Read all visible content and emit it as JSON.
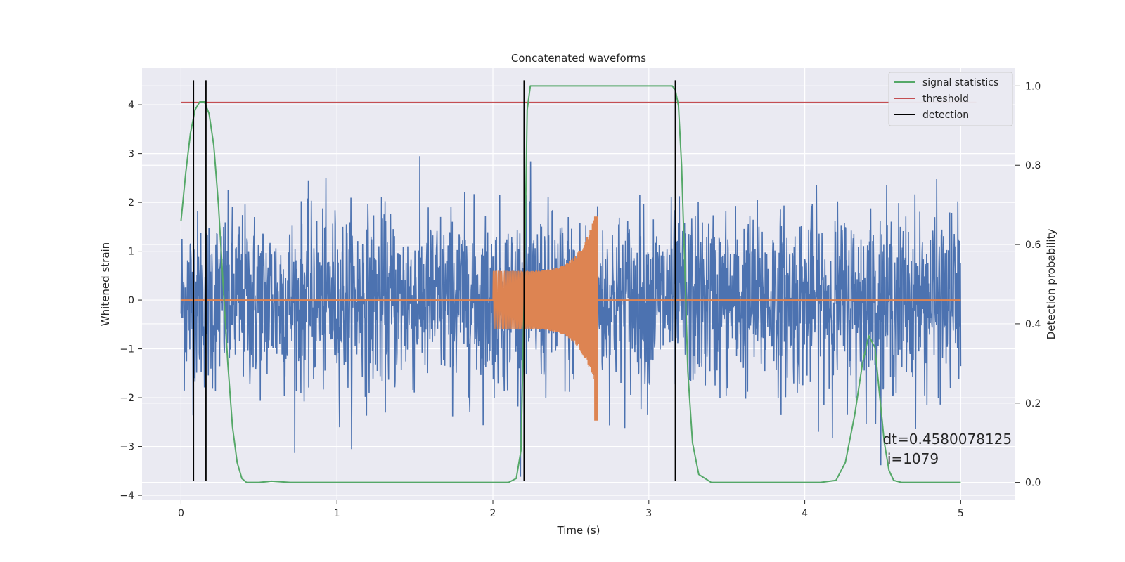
{
  "chart_data": {
    "type": "line",
    "title": "Concatenated waveforms",
    "xlabel": "Time (s)",
    "ylabel": "Whitened strain",
    "y2label": "Detection probability",
    "xlim": [
      -0.25,
      5.35
    ],
    "ylim": [
      -4.1,
      4.75
    ],
    "y2lim": [
      -0.045,
      1.045
    ],
    "xticks": [
      0,
      1,
      2,
      3,
      4,
      5
    ],
    "xtick_labels": [
      "0",
      "1",
      "2",
      "3",
      "4",
      "5"
    ],
    "yticks": [
      -4,
      -3,
      -2,
      -1,
      0,
      1,
      2,
      3,
      4
    ],
    "ytick_labels": [
      "−4",
      "−3",
      "−2",
      "−1",
      "0",
      "1",
      "2",
      "3",
      "4"
    ],
    "y2ticks": [
      0.0,
      0.2,
      0.4,
      0.6,
      0.8,
      1.0
    ],
    "y2tick_labels": [
      "0.0",
      "0.2",
      "0.4",
      "0.6",
      "0.8",
      "1.0"
    ],
    "grid": true,
    "legend": {
      "placement": "top-right",
      "entries": [
        {
          "label": "signal statistics",
          "color": "#55a868"
        },
        {
          "label": "threshold",
          "color": "#c44e52"
        },
        {
          "label": "detection",
          "color": "#000000"
        }
      ]
    },
    "series": [
      {
        "kind": "noise",
        "axis": "left",
        "color": "#4c72b0",
        "x_range": [
          0,
          5
        ],
        "typical_amplitude": 1.2,
        "peak_amplitude": 3.7
      },
      {
        "kind": "chirp",
        "axis": "left",
        "color": "#dd8452",
        "x_range": [
          2.0,
          2.67
        ],
        "start_amplitude": 0.6,
        "peak_amplitude": 1.9,
        "min_value": -2.6
      },
      {
        "name": "signal statistics",
        "axis": "right",
        "color": "#55a868",
        "x": [
          0.0,
          0.03,
          0.06,
          0.09,
          0.12,
          0.15,
          0.18,
          0.21,
          0.24,
          0.27,
          0.3,
          0.33,
          0.36,
          0.39,
          0.42,
          0.5,
          0.58,
          0.7,
          0.9,
          1.2,
          1.5,
          1.8,
          2.1,
          2.15,
          2.18,
          2.2,
          2.22,
          2.24,
          2.27,
          2.3,
          2.5,
          2.8,
          3.1,
          3.15,
          3.17,
          3.19,
          3.21,
          3.23,
          3.25,
          3.28,
          3.32,
          3.4,
          3.6,
          3.9,
          4.1,
          4.2,
          4.26,
          4.32,
          4.37,
          4.41,
          4.45,
          4.48,
          4.51,
          4.54,
          4.57,
          4.62,
          4.7,
          4.85,
          5.0
        ],
        "values": [
          0.66,
          0.78,
          0.88,
          0.94,
          0.96,
          0.96,
          0.93,
          0.85,
          0.7,
          0.5,
          0.3,
          0.14,
          0.05,
          0.01,
          0.0,
          0.0,
          0.003,
          0.0,
          0.0,
          0.0,
          0.0,
          0.0,
          0.0,
          0.01,
          0.08,
          0.45,
          0.94,
          1.0,
          1.0,
          1.0,
          1.0,
          1.0,
          1.0,
          1.0,
          0.99,
          0.95,
          0.8,
          0.55,
          0.28,
          0.1,
          0.02,
          0.0,
          0.0,
          0.0,
          0.0,
          0.005,
          0.05,
          0.17,
          0.3,
          0.37,
          0.34,
          0.22,
          0.1,
          0.03,
          0.005,
          0.0,
          0.0,
          0.0,
          0.0
        ]
      },
      {
        "name": "threshold",
        "axis": "left",
        "color": "#c44e52",
        "x": [
          0,
          5.1
        ],
        "values": [
          4.05,
          4.05
        ]
      }
    ],
    "detections": [
      0.08,
      0.16,
      2.2,
      3.17
    ],
    "detection_range": [
      -3.7,
      4.5
    ],
    "annotation": {
      "x": 4.5,
      "y": -3.35,
      "lines": [
        "dt=0.4580078125",
        " i=1079"
      ]
    }
  }
}
